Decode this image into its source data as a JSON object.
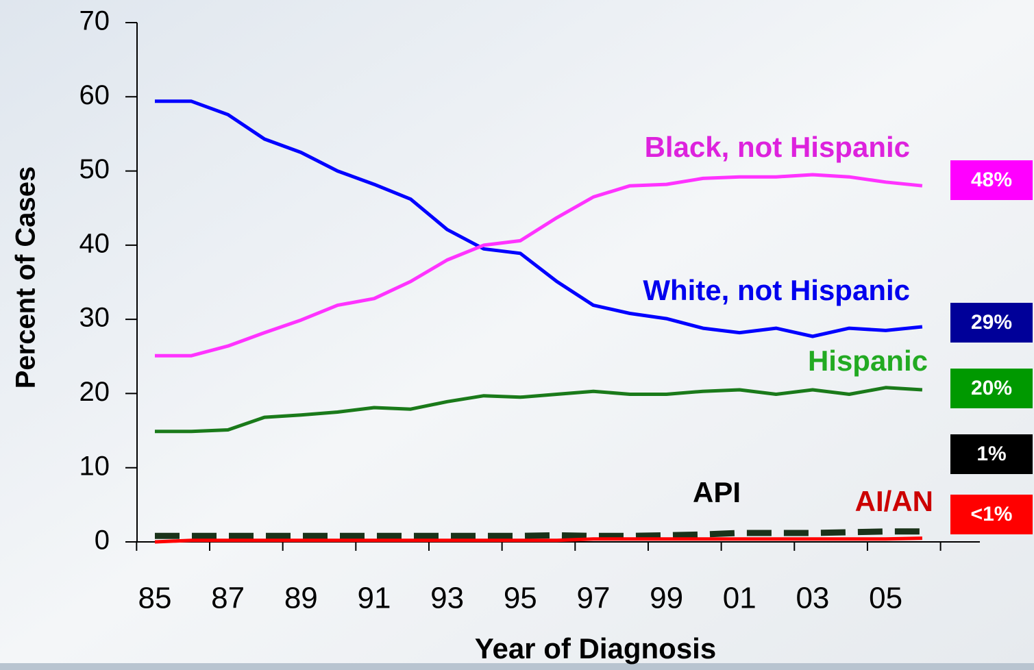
{
  "chart_data": {
    "type": "line",
    "x_label": "Year of Diagnosis",
    "y_label": "Percent of Cases",
    "categories": [
      "85",
      null,
      "87",
      null,
      "89",
      null,
      "91",
      null,
      "93",
      null,
      "95",
      null,
      "97",
      null,
      "99",
      null,
      "01",
      null,
      "03",
      null,
      "05",
      null
    ],
    "ylim": [
      0,
      70
    ],
    "yticks": [
      0,
      10,
      20,
      30,
      40,
      50,
      60,
      70
    ],
    "series": [
      {
        "name": "Black, not Hispanic",
        "color": "#ff33ff",
        "label_color": "#dd22dd",
        "end_label": "48%",
        "end_color": "#ff00ff",
        "values": [
          25.1,
          25.1,
          26.4,
          28.2,
          29.9,
          31.9,
          32.8,
          35.1,
          38.0,
          40.0,
          40.6,
          43.7,
          46.5,
          48.0,
          48.2,
          49.0,
          49.2,
          49.2,
          49.5,
          49.2,
          48.5,
          48.0
        ]
      },
      {
        "name": "White, not Hispanic",
        "color": "#0000ff",
        "label_color": "#0000ee",
        "end_label": "29%",
        "end_color": "#000099",
        "values": [
          59.4,
          59.4,
          57.6,
          54.3,
          52.5,
          50.0,
          48.2,
          46.2,
          42.1,
          39.5,
          38.9,
          35.1,
          31.9,
          30.8,
          30.1,
          28.8,
          28.2,
          28.8,
          27.7,
          28.8,
          28.5,
          29.0
        ]
      },
      {
        "name": "Hispanic",
        "color": "#1a7a1a",
        "label_color": "#22aa22",
        "end_label": "20%",
        "end_color": "#009900",
        "values": [
          14.9,
          14.9,
          15.1,
          16.8,
          17.1,
          17.5,
          18.1,
          17.9,
          18.9,
          19.7,
          19.5,
          19.9,
          20.3,
          19.9,
          19.9,
          20.3,
          20.5,
          19.9,
          20.5,
          19.9,
          20.8,
          20.5
        ]
      },
      {
        "name": "API",
        "color": "#1a331a",
        "label_color": "#000000",
        "end_label": "1%",
        "end_color": "#000000",
        "dashed": true,
        "values": [
          0.8,
          0.8,
          0.8,
          0.8,
          0.8,
          0.8,
          0.8,
          0.8,
          0.8,
          0.8,
          0.8,
          0.9,
          0.8,
          0.8,
          0.9,
          1.0,
          1.2,
          1.2,
          1.2,
          1.3,
          1.4,
          1.4
        ]
      },
      {
        "name": "AI/AN",
        "color": "#ff0000",
        "label_color": "#cc0000",
        "end_label": "<1%",
        "end_color": "#ff0000",
        "values": [
          0.0,
          0.2,
          0.2,
          0.2,
          0.2,
          0.2,
          0.2,
          0.2,
          0.2,
          0.2,
          0.2,
          0.2,
          0.4,
          0.4,
          0.4,
          0.4,
          0.4,
          0.4,
          0.4,
          0.4,
          0.4,
          0.5
        ]
      }
    ]
  }
}
